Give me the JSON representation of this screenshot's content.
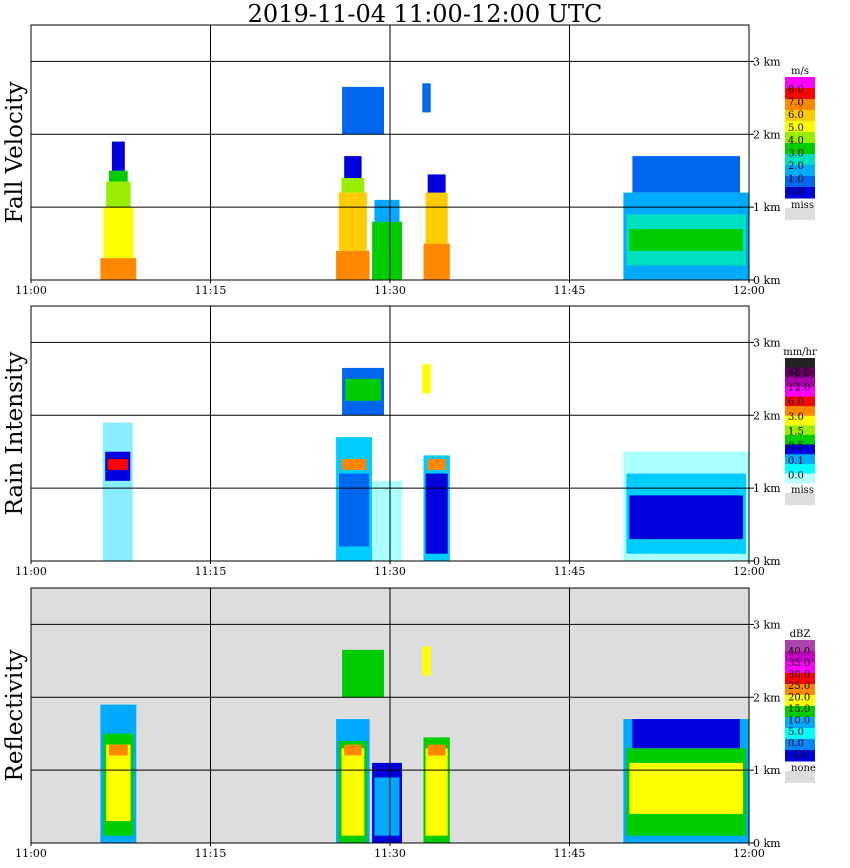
{
  "title": "2019-11-04   11:00-12:00 UTC",
  "chart_data": [
    {
      "type": "heatmap",
      "ylabel": "Fall Velocity",
      "x_ticks": [
        "11:00",
        "11:15",
        "11:30",
        "11:45",
        "12:00"
      ],
      "y_ticks": [
        "0 km",
        "1 km",
        "2 km",
        "3 km"
      ],
      "ylim": [
        0,
        3.5
      ],
      "grid": true,
      "background": "white",
      "colorbar": {
        "unit": "m/s",
        "labels": [
          "8.0",
          "7.0",
          "6.0",
          "5.0",
          "4.0",
          "3.0",
          "2.0",
          "1.0",
          "0.0"
        ],
        "colors": [
          "#ff00ff",
          "#ff0000",
          "#ff8800",
          "#ffcc00",
          "#ffff00",
          "#99ee00",
          "#00cc00",
          "#00e0c0",
          "#00aaff",
          "#0066ee",
          "#0000dd"
        ],
        "missing_label": "miss",
        "missing_color": "#dddddd"
      },
      "echoes": [
        {
          "x0": 5.8,
          "x1": 8.8,
          "y0": 0,
          "y1": 1.9,
          "levels": [
            [
              0,
              0.3,
              "#ff8800"
            ],
            [
              0.3,
              1.0,
              "#ffff00"
            ],
            [
              1.0,
              1.35,
              "#99ee00"
            ],
            [
              1.35,
              1.5,
              "#00cc00"
            ],
            [
              1.5,
              1.9,
              "#0000dd"
            ]
          ]
        },
        {
          "x0": 25.5,
          "x1": 28.3,
          "y0": 0,
          "y1": 1.7,
          "levels": [
            [
              0,
              0.4,
              "#ff8800"
            ],
            [
              0.4,
              1.2,
              "#ffcc00"
            ],
            [
              1.2,
              1.4,
              "#99ee00"
            ],
            [
              1.4,
              1.7,
              "#0000dd"
            ]
          ]
        },
        {
          "x0": 28.5,
          "x1": 31.0,
          "y0": 0,
          "y1": 1.1,
          "levels": [
            [
              0,
              0.8,
              "#00cc00"
            ],
            [
              0.8,
              1.1,
              "#00aaff"
            ]
          ]
        },
        {
          "x0": 32.8,
          "x1": 35.0,
          "y0": 0,
          "y1": 1.45,
          "levels": [
            [
              0,
              0.5,
              "#ff8800"
            ],
            [
              0.5,
              1.2,
              "#ffcc00"
            ],
            [
              1.2,
              1.45,
              "#0000dd"
            ]
          ]
        },
        {
          "x0": 26.0,
          "x1": 29.5,
          "y0": 2.0,
          "y1": 2.65,
          "levels": [
            [
              2.0,
              2.65,
              "#0066ee"
            ]
          ]
        },
        {
          "x0": 32.7,
          "x1": 33.4,
          "y0": 2.3,
          "y1": 2.7,
          "levels": [
            [
              2.3,
              2.7,
              "#0066ee"
            ]
          ]
        },
        {
          "x0": 49.5,
          "x1": 60.0,
          "y0": 0,
          "y1": 1.7,
          "levels": [
            [
              0,
              1.2,
              "#00aaff"
            ],
            [
              0.2,
              0.9,
              "#00e0c0"
            ],
            [
              0.4,
              0.7,
              "#00cc00"
            ],
            [
              1.2,
              1.7,
              "#0066ee"
            ]
          ]
        }
      ]
    },
    {
      "type": "heatmap",
      "ylabel": "Rain Intensity",
      "x_ticks": [
        "11:00",
        "11:15",
        "11:30",
        "11:45",
        "12:00"
      ],
      "y_ticks": [
        "0 km",
        "1 km",
        "2 km",
        "3 km"
      ],
      "ylim": [
        0,
        3.5
      ],
      "grid": true,
      "background": "white",
      "colorbar": {
        "unit": "mm/hr",
        "labels": [
          "48.0",
          "12.0",
          "6.0",
          "3.0",
          "1.5",
          "0.5",
          "0.1",
          "0.0"
        ],
        "colors": [
          "#222222",
          "#660066",
          "#aa00aa",
          "#ff00ff",
          "#ff0000",
          "#ff8800",
          "#ffff00",
          "#99ee00",
          "#00cc00",
          "#0000dd",
          "#00aaff",
          "#00ffff",
          "#bbffff"
        ],
        "missing_label": "miss",
        "missing_color": "#dddddd"
      },
      "echoes": [
        {
          "x0": 6.0,
          "x1": 8.5,
          "y0": 0,
          "y1": 1.9,
          "levels": [
            [
              0,
              1.9,
              "#88eeff"
            ],
            [
              1.1,
              1.5,
              "#0000dd"
            ],
            [
              1.25,
              1.4,
              "#ff0000"
            ]
          ]
        },
        {
          "x0": 25.5,
          "x1": 28.5,
          "y0": 0,
          "y1": 1.7,
          "levels": [
            [
              0,
              1.7,
              "#00ccff"
            ],
            [
              0.2,
              1.2,
              "#0066ee"
            ],
            [
              1.25,
              1.4,
              "#ff8800"
            ]
          ]
        },
        {
          "x0": 28.5,
          "x1": 31.0,
          "y0": 0,
          "y1": 1.1,
          "levels": [
            [
              0,
              1.1,
              "#aaffff"
            ]
          ]
        },
        {
          "x0": 32.8,
          "x1": 35.0,
          "y0": 0,
          "y1": 1.45,
          "levels": [
            [
              0,
              1.45,
              "#00ccff"
            ],
            [
              0.1,
              1.2,
              "#0000dd"
            ],
            [
              1.25,
              1.4,
              "#ff8800"
            ]
          ]
        },
        {
          "x0": 26.0,
          "x1": 29.5,
          "y0": 2.0,
          "y1": 2.65,
          "levels": [
            [
              2.0,
              2.65,
              "#0066ee"
            ],
            [
              2.2,
              2.5,
              "#00cc00"
            ]
          ]
        },
        {
          "x0": 32.7,
          "x1": 33.4,
          "y0": 2.3,
          "y1": 2.7,
          "levels": [
            [
              2.3,
              2.7,
              "#ffff00"
            ]
          ]
        },
        {
          "x0": 49.5,
          "x1": 60.0,
          "y0": 0,
          "y1": 1.7,
          "levels": [
            [
              0,
              1.5,
              "#aaffff"
            ],
            [
              0.1,
              1.2,
              "#00ccff"
            ],
            [
              0.3,
              0.9,
              "#0000dd"
            ]
          ]
        }
      ]
    },
    {
      "type": "heatmap",
      "ylabel": "Reflectivity",
      "x_ticks": [
        "11:00",
        "11:15",
        "11:30",
        "11:45",
        "12:00"
      ],
      "y_ticks": [
        "0 km",
        "1 km",
        "2 km",
        "3 km"
      ],
      "ylim": [
        0,
        3.5
      ],
      "grid": true,
      "background": "#dddddd",
      "colorbar": {
        "unit": "dBZ",
        "labels": [
          "40.0",
          "35.0",
          "30.0",
          "25.0",
          "20.0",
          "15.0",
          "10.0",
          "5.0",
          "0.0",
          "-5.0"
        ],
        "colors": [
          "#aa44aa",
          "#cc00cc",
          "#ff00ff",
          "#ff0000",
          "#ff8800",
          "#ffff00",
          "#00cc00",
          "#00aaff",
          "#00ffff",
          "#0088ff",
          "#0000dd"
        ],
        "missing_label": "none",
        "missing_color": "#dddddd"
      },
      "echoes": [
        {
          "x0": 5.8,
          "x1": 8.8,
          "y0": 0,
          "y1": 1.9,
          "levels": [
            [
              0,
              1.9,
              "#00aaff"
            ],
            [
              0.1,
              1.5,
              "#00cc00"
            ],
            [
              0.3,
              1.35,
              "#ffff00"
            ],
            [
              1.2,
              1.35,
              "#ff8800"
            ]
          ]
        },
        {
          "x0": 25.5,
          "x1": 28.3,
          "y0": 0,
          "y1": 1.7,
          "levels": [
            [
              0,
              1.7,
              "#00aaff"
            ],
            [
              0,
              1.4,
              "#00cc00"
            ],
            [
              0.1,
              1.3,
              "#ffff00"
            ],
            [
              1.2,
              1.35,
              "#ff8800"
            ]
          ]
        },
        {
          "x0": 28.5,
          "x1": 31.0,
          "y0": 0,
          "y1": 1.1,
          "levels": [
            [
              0,
              1.1,
              "#0000dd"
            ],
            [
              0.1,
              0.9,
              "#00aaff"
            ]
          ]
        },
        {
          "x0": 32.8,
          "x1": 35.0,
          "y0": 0,
          "y1": 1.45,
          "levels": [
            [
              0,
              1.45,
              "#00cc00"
            ],
            [
              0.1,
              1.3,
              "#ffff00"
            ],
            [
              1.2,
              1.35,
              "#ff8800"
            ]
          ]
        },
        {
          "x0": 26.0,
          "x1": 29.5,
          "y0": 2.0,
          "y1": 2.65,
          "levels": [
            [
              2.0,
              2.65,
              "#00cc00"
            ]
          ]
        },
        {
          "x0": 32.7,
          "x1": 33.4,
          "y0": 2.3,
          "y1": 2.7,
          "levels": [
            [
              2.3,
              2.7,
              "#ffff00"
            ]
          ]
        },
        {
          "x0": 49.5,
          "x1": 60.0,
          "y0": 0,
          "y1": 1.7,
          "levels": [
            [
              0,
              1.7,
              "#00aaff"
            ],
            [
              0.1,
              1.3,
              "#00cc00"
            ],
            [
              0.4,
              1.1,
              "#ffff00"
            ],
            [
              1.3,
              1.7,
              "#0000dd"
            ]
          ]
        }
      ]
    }
  ]
}
